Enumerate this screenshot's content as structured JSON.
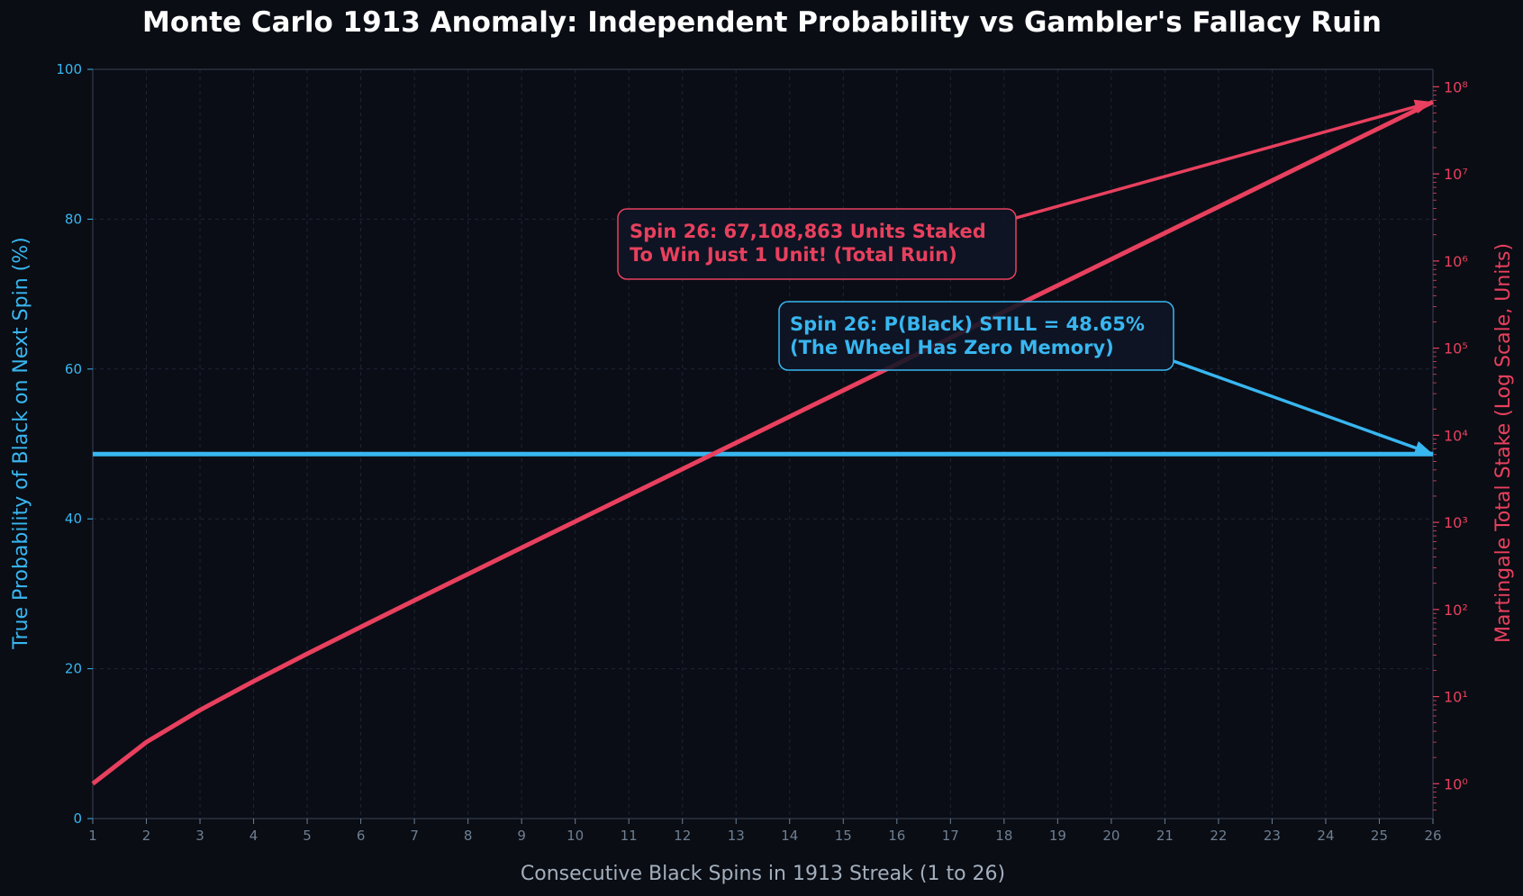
{
  "chart_data": {
    "type": "line",
    "title": "Monte Carlo 1913 Anomaly: Independent Probability vs Gambler's Fallacy Ruin",
    "xlabel": "Consecutive Black Spins in 1913 Streak (1 to 26)",
    "ylabel_left": "True Probability of Black on Next Spin (%)",
    "ylabel_right": "Martingale Total Stake (Log Scale, Units)",
    "x": [
      1,
      2,
      3,
      4,
      5,
      6,
      7,
      8,
      9,
      10,
      11,
      12,
      13,
      14,
      15,
      16,
      17,
      18,
      19,
      20,
      21,
      22,
      23,
      24,
      25,
      26
    ],
    "xlim": [
      1,
      26
    ],
    "ylim_left": [
      0,
      100
    ],
    "yticks_left": [
      0,
      20,
      40,
      60,
      80,
      100
    ],
    "ylim_right_log10": [
      -0.4,
      8.2
    ],
    "yticks_right": [
      "10⁰",
      "10¹",
      "10²",
      "10³",
      "10⁴",
      "10⁵",
      "10⁶",
      "10⁷",
      "10⁸"
    ],
    "right_axis_scale": "log",
    "grid": true,
    "series": [
      {
        "name": "",
        "axis": "left",
        "color": "#38b6f0",
        "values": [
          48.65,
          48.65,
          48.65,
          48.65,
          48.65,
          48.65,
          48.65,
          48.65,
          48.65,
          48.65,
          48.65,
          48.65,
          48.65,
          48.65,
          48.65,
          48.65,
          48.65,
          48.65,
          48.65,
          48.65,
          48.65,
          48.65,
          48.65,
          48.65,
          48.65,
          48.65
        ]
      },
      {
        "name": "",
        "axis": "right",
        "color": "#e8405e",
        "values": [
          1,
          3,
          7,
          15,
          31,
          63,
          127,
          255,
          511,
          1023,
          2047,
          4095,
          8191,
          16383,
          32767,
          65535,
          131071,
          262143,
          524287,
          1048575,
          2097151,
          4194303,
          8388607,
          16777215,
          33554431,
          67108863
        ]
      }
    ],
    "annotations": [
      {
        "color": "#e8405e",
        "line1": "Spin 26: 67,108,863 Units Staked",
        "line2": "To Win Just 1 Unit! (Total Ruin)",
        "target_x": 26,
        "target_axis": "right",
        "target_value": 67108863
      },
      {
        "color": "#38b6f0",
        "line1": "Spin 26: P(Black) STILL = 48.65%",
        "line2": "(The Wheel Has Zero Memory)",
        "target_x": 26,
        "target_axis": "left",
        "target_value": 48.65
      }
    ],
    "colors": {
      "background": "#0a0d14",
      "plot_background": "#0a0d16",
      "grid": "#1e2633",
      "spine": "#2a3240",
      "tick_text": "#6f7f92",
      "xlabel": "#a3afbd",
      "title": "#ffffff",
      "annotation_box": "#0f1626"
    }
  }
}
